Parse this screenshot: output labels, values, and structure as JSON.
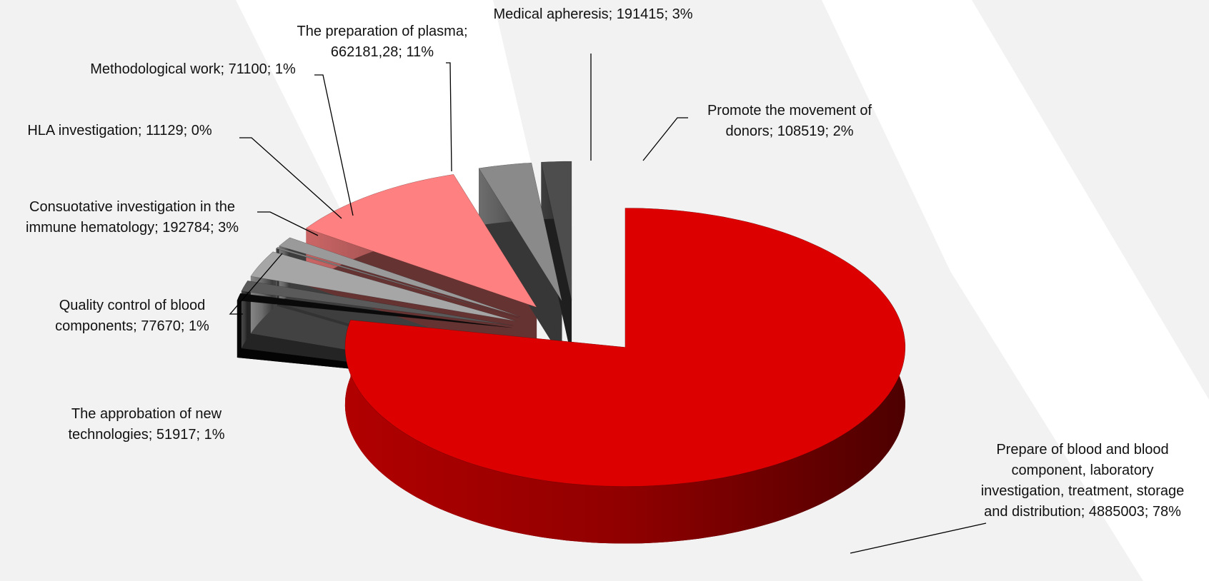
{
  "chart_data": {
    "type": "pie3d",
    "categories": [
      "Prepare of blood and blood component, laboratory investigation, treatment, storage and distribution",
      "The approbation of new technologies",
      "Quality control of blood components",
      "Consuotative investigation in the immune hematology",
      "HLA investigation",
      "Methodological work",
      "The preparation of plasma",
      "Medical apheresis",
      "Promote the movement of donors"
    ],
    "values": [
      4885003,
      51917,
      77670,
      192784,
      11129,
      71100,
      662181.28,
      191415,
      108519
    ],
    "value_labels": [
      "Prepare of blood and blood component, laboratory investigation, treatment, storage and distribution; 4885003; 78%",
      "The approbation of new technologies; 51917; 1%",
      "Quality control of blood components; 77670; 1%",
      "Consuotative investigation in the immune hematology; 192784; 3%",
      "HLA investigation; 11129; 0%",
      "Methodological work; 71100; 1%",
      "The preparation of plasma; 662181,28; 11%",
      "Medical apheresis; 191415; 3%",
      "Promote the movement of donors; 108519; 2%"
    ],
    "colors": [
      "#dd0000",
      "#0a0a0a",
      "#5a5a5a",
      "#a6a6a6",
      "#7f7f7f",
      "#9a9a9a",
      "#ff8080",
      "#8a8a8a",
      "#4d4d4d"
    ]
  }
}
